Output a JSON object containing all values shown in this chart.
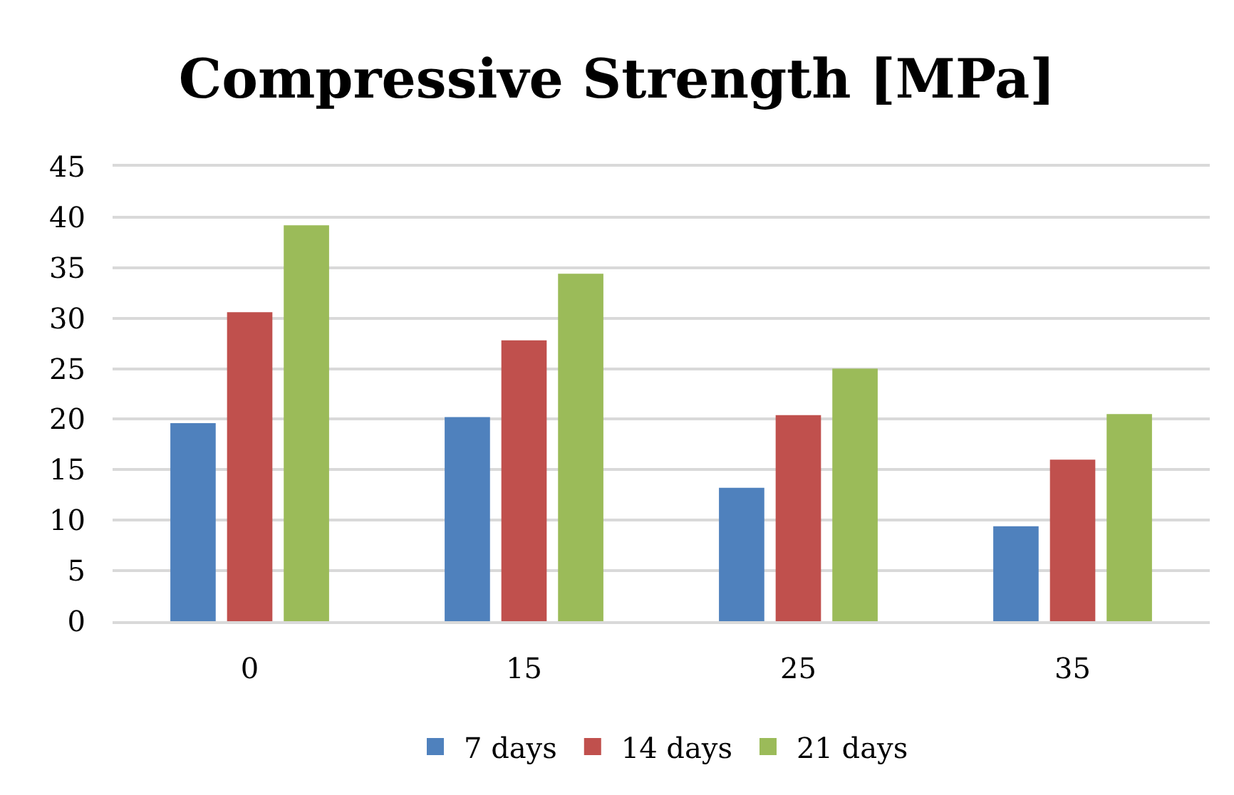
{
  "chart_data": {
    "type": "bar",
    "title": "Compressive Strength [MPa]",
    "categories": [
      "0",
      "15",
      "25",
      "35"
    ],
    "series": [
      {
        "name": "7 days",
        "color": "#4f81bd",
        "values": [
          19.6,
          20.2,
          13.2,
          9.4
        ]
      },
      {
        "name": "14 days",
        "color": "#c0504d",
        "values": [
          30.6,
          27.8,
          20.4,
          16.0
        ]
      },
      {
        "name": "21 days",
        "color": "#9bbb59",
        "values": [
          39.2,
          34.4,
          25.0,
          20.5
        ]
      }
    ],
    "ylim": [
      0,
      45
    ],
    "yticks": [
      0,
      5,
      10,
      15,
      20,
      25,
      30,
      35,
      40,
      45
    ],
    "grid": "y",
    "legend": "bottom"
  }
}
